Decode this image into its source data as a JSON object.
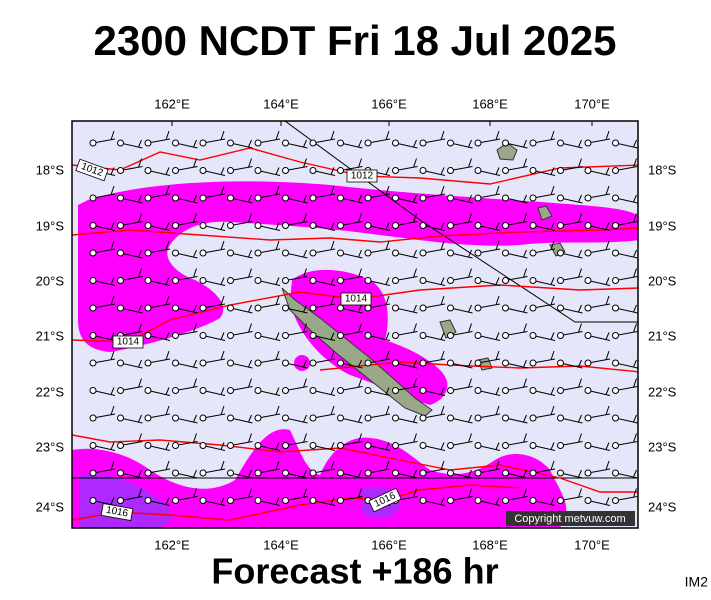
{
  "title": "2300 NCDT Fri 18 Jul 2025",
  "footer": "Forecast +186 hr",
  "corner_label": "IM2",
  "copyright": "Copyright metvuw.com",
  "longitude_labels": [
    "162°E",
    "164°E",
    "166°E",
    "168°E",
    "170°E"
  ],
  "latitude_labels": [
    "18°S",
    "19°S",
    "20°S",
    "21°S",
    "22°S",
    "23°S",
    "24°S"
  ],
  "isobar_labels": [
    "1012",
    "1012",
    "1014",
    "1014",
    "1016",
    "1016"
  ]
}
